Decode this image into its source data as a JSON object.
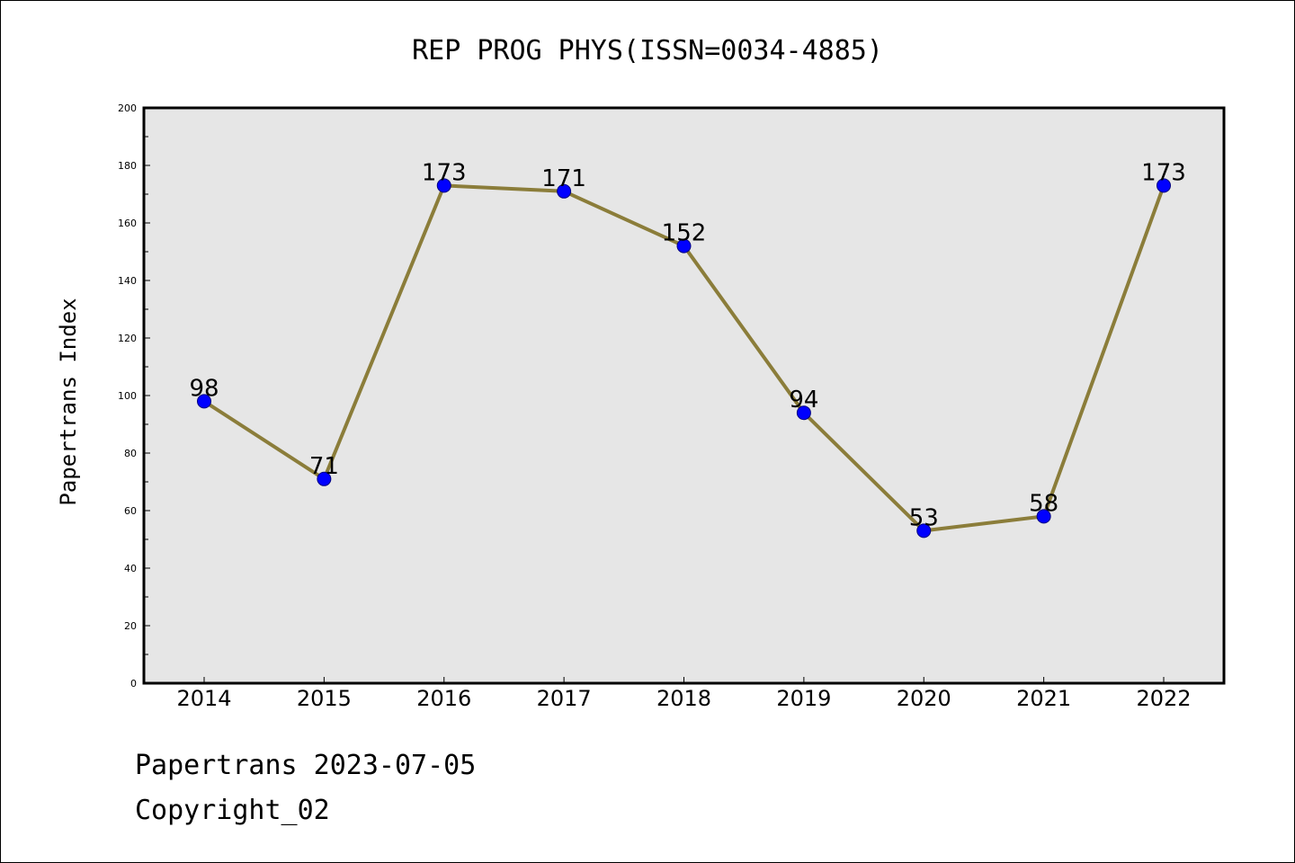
{
  "chart_data": {
    "type": "line",
    "title": "REP PROG PHYS(ISSN=0034-4885)",
    "ylabel": "Papertrans Index",
    "xlabel": "",
    "categories": [
      "2014",
      "2015",
      "2016",
      "2017",
      "2018",
      "2019",
      "2020",
      "2021",
      "2022"
    ],
    "series": [
      {
        "values": [
          98,
          71,
          173,
          171,
          152,
          94,
          53,
          58,
          173
        ]
      }
    ],
    "data_labels": [
      "98",
      "71",
      "173",
      "171",
      "152",
      "94",
      "53",
      "58",
      "173"
    ],
    "ylim": [
      0,
      200
    ],
    "yticks": [
      0,
      20,
      40,
      60,
      80,
      100,
      120,
      140,
      160,
      180,
      200
    ],
    "ytick_labels": [
      "0",
      "20",
      "40",
      "60",
      "80",
      "100",
      "120",
      "140",
      "160",
      "180",
      "200"
    ],
    "grid": false,
    "colors": {
      "line": "#8b7d3a",
      "marker_fill": "#0000ff",
      "marker_edge": "#000080",
      "plot_background": "#e6e6e6"
    }
  },
  "footer": {
    "date_text": "Papertrans 2023-07-05",
    "copyright_text": "Copyright_02"
  }
}
